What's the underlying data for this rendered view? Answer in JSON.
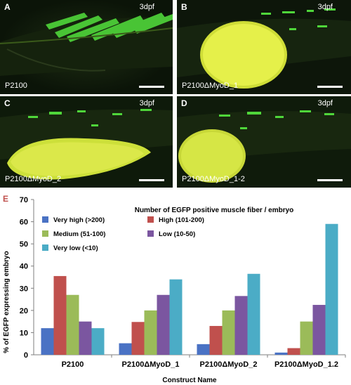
{
  "panels": [
    {
      "label": "A",
      "stage": "3dpf",
      "name": "P2100"
    },
    {
      "label": "B",
      "stage": "3dpf",
      "name": "P2100ΔMyoD_1"
    },
    {
      "label": "C",
      "stage": "3dpf",
      "name": "P2100ΔMyoD_2"
    },
    {
      "label": "D",
      "stage": "3dpf",
      "name": "P2100ΔMyoD_1-2"
    }
  ],
  "chart_data": {
    "type": "bar",
    "panel_label": "E",
    "legend_title": "Number of EGFP positive muscle fiber / embryo",
    "xlabel": "Construct Name",
    "ylabel": "% of EGFP expressing embryo",
    "ylim": [
      0,
      70
    ],
    "yticks": [
      0,
      10,
      20,
      30,
      40,
      50,
      60,
      70
    ],
    "categories": [
      "P2100",
      "P2100ΔMyoD_1",
      "P2100ΔMyoD_2",
      "P2100ΔMyoD_1.2"
    ],
    "series": [
      {
        "name": "Very high (>200)",
        "color": "#4a72c4",
        "values": [
          12,
          5.2,
          4.8,
          1
        ]
      },
      {
        "name": "High (101-200)",
        "color": "#c0504d",
        "values": [
          35.5,
          14.8,
          13,
          3
        ]
      },
      {
        "name": "Medium (51-100)",
        "color": "#9bbb59",
        "values": [
          27,
          20,
          20,
          15
        ]
      },
      {
        "name": "Low (10-50)",
        "color": "#7b56a0",
        "values": [
          15,
          27,
          26.5,
          22.5
        ]
      },
      {
        "name": "Very low (<10)",
        "color": "#4bacc6",
        "values": [
          12,
          34,
          36.5,
          59
        ]
      }
    ],
    "grid": false,
    "legend_position": "top-left"
  }
}
